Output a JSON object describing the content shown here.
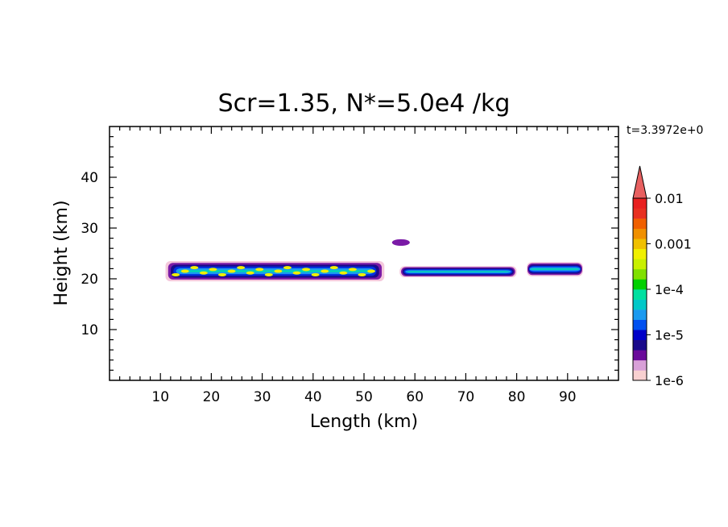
{
  "chart_data": {
    "type": "heatmap",
    "title": "Scr=1.35, N*=5.0e4 /kg",
    "time_label": "t=3.3972e+0",
    "xlabel": "Length  (km)",
    "ylabel": "Height  (km)",
    "xlim": [
      0,
      100
    ],
    "ylim": [
      0,
      50
    ],
    "xticks": [
      "10",
      "20",
      "30",
      "40",
      "50",
      "60",
      "70",
      "80",
      "90"
    ],
    "yticks": [
      "10",
      "20",
      "30",
      "40"
    ],
    "colorbar": {
      "scale": "log",
      "tick_labels": [
        "0.01",
        "0.001",
        "1e-4",
        "1e-5",
        "1e-6"
      ],
      "colors": [
        "#f8d0d0",
        "#d8a0d8",
        "#6a0a9a",
        "#1a0a8a",
        "#0000c8",
        "#0050f0",
        "#1a9af0",
        "#00c8c8",
        "#00e0a0",
        "#00d000",
        "#80e000",
        "#c8f000",
        "#f0f000",
        "#f0c000",
        "#f09000",
        "#f06000",
        "#e83020",
        "#e82020",
        "#e84040"
      ]
    },
    "features": [
      {
        "name": "main layer",
        "x": [
          11,
          54
        ],
        "y": [
          19.5,
          23.5
        ]
      },
      {
        "name": "middle layer",
        "x": [
          57,
          80
        ],
        "y": [
          20.3,
          22.5
        ]
      },
      {
        "name": "right patch",
        "x": [
          82,
          93
        ],
        "y": [
          20.5,
          23.3
        ]
      },
      {
        "name": "isolated blob",
        "x": [
          55.5,
          59
        ],
        "y": [
          26.5,
          27.8
        ]
      }
    ]
  }
}
